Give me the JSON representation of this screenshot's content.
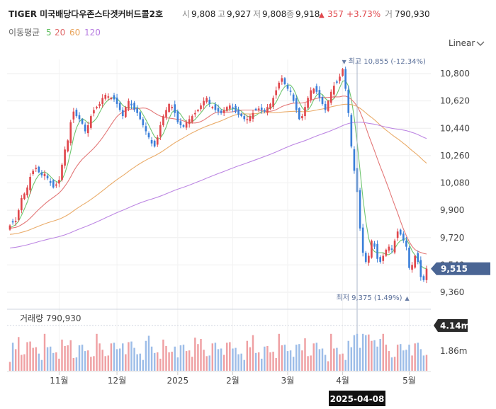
{
  "header": {
    "name": "TIGER 미국배당다우존스타겟커버드콜2호",
    "open_label": "시",
    "open": "9,808",
    "high_label": "고",
    "high": "9,927",
    "low_label": "저",
    "low": "9,808",
    "close_label": "종",
    "close": "9,918",
    "change_arrow": "▲",
    "change": "357",
    "change_pct": "+3.73%",
    "volume_label": "거",
    "volume": "790,930"
  },
  "ma_legend": {
    "label": "이동평균",
    "items": [
      {
        "period": "5",
        "color": "#5fbf5f"
      },
      {
        "period": "20",
        "color": "#e06868"
      },
      {
        "period": "60",
        "color": "#e8a35a"
      },
      {
        "period": "120",
        "color": "#b67ae0"
      }
    ]
  },
  "scale_selector": {
    "label": "Linear",
    "icon": "chevron-down-icon"
  },
  "markers": {
    "high": {
      "arrow": "▼",
      "text": "최고 10,855 (-12.34%)"
    },
    "low": {
      "arrow": "▲",
      "text": "최저 9,375 (1.49%)"
    }
  },
  "current_price_tag": "9,515",
  "volume_panel": {
    "label": "거래량 790,930",
    "current_tag": "4.14m",
    "ticks": [
      "1.86m"
    ]
  },
  "crosshair_date": "2025-04-08",
  "colors": {
    "up": "#e0474c",
    "down": "#3b7fd9",
    "tag_bg": "#4a6594",
    "grid": "#eeeeee"
  },
  "chart_data": {
    "type": "candlestick",
    "ylim": [
      9300,
      10900
    ],
    "y_ticks": [
      {
        "value": 10800,
        "label": "10,800"
      },
      {
        "value": 10620,
        "label": "10,620"
      },
      {
        "value": 10440,
        "label": "10,440"
      },
      {
        "value": 10260,
        "label": "10,260"
      },
      {
        "value": 10080,
        "label": "10,080"
      },
      {
        "value": 9900,
        "label": "9,900"
      },
      {
        "value": 9720,
        "label": "9,720"
      },
      {
        "value": 9540,
        "label": "9,540"
      },
      {
        "value": 9360,
        "label": "9,360"
      }
    ],
    "x_ticks": [
      {
        "label": "11월",
        "index": 17
      },
      {
        "label": "12월",
        "index": 37
      },
      {
        "label": "2025",
        "index": 58
      },
      {
        "label": "2월",
        "index": 77
      },
      {
        "label": "3월",
        "index": 96
      },
      {
        "label": "4월",
        "index": 115
      },
      {
        "label": "5월",
        "index": 138
      }
    ],
    "crosshair_index": 120,
    "high_index": 116,
    "low_index": 138,
    "closes": [
      9800,
      9820,
      9830,
      9900,
      9980,
      10010,
      10050,
      10120,
      10160,
      10180,
      10150,
      10130,
      10140,
      10110,
      10080,
      10050,
      10070,
      10100,
      10200,
      10300,
      10360,
      10480,
      10550,
      10520,
      10500,
      10470,
      10420,
      10460,
      10520,
      10560,
      10580,
      10600,
      10640,
      10660,
      10650,
      10640,
      10630,
      10600,
      10560,
      10520,
      10580,
      10620,
      10590,
      10560,
      10540,
      10500,
      10460,
      10420,
      10380,
      10340,
      10320,
      10380,
      10460,
      10520,
      10560,
      10600,
      10580,
      10540,
      10480,
      10460,
      10450,
      10480,
      10500,
      10520,
      10540,
      10560,
      10590,
      10620,
      10640,
      10600,
      10580,
      10560,
      10550,
      10540,
      10560,
      10580,
      10590,
      10570,
      10550,
      10530,
      10520,
      10500,
      10500,
      10520,
      10540,
      10560,
      10570,
      10560,
      10550,
      10580,
      10600,
      10640,
      10690,
      10740,
      10770,
      10730,
      10700,
      10680,
      10620,
      10560,
      10500,
      10520,
      10580,
      10640,
      10690,
      10700,
      10680,
      10640,
      10600,
      10560,
      10620,
      10680,
      10720,
      10740,
      10780,
      10830,
      10700,
      10540,
      10320,
      10160,
      10020,
      9780,
      9620,
      9560,
      9600,
      9700,
      9660,
      9580,
      9560,
      9600,
      9640,
      9660,
      9640,
      9700,
      9760,
      9740,
      9700,
      9660,
      9520,
      9540,
      9600,
      9560,
      9460,
      9440,
      9515
    ]
  }
}
